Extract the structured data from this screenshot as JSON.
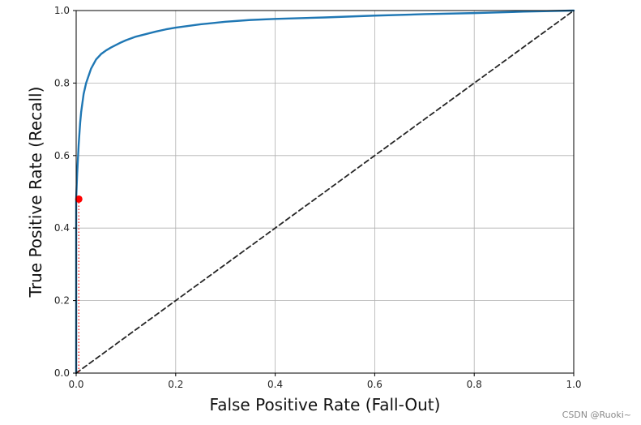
{
  "chart_data": {
    "type": "line",
    "xlabel": "False Positive Rate (Fall-Out)",
    "ylabel": "True Positive Rate (Recall)",
    "xlim": [
      0,
      1
    ],
    "ylim": [
      0,
      1
    ],
    "xticks": [
      "0.0",
      "0.2",
      "0.4",
      "0.6",
      "0.8",
      "1.0"
    ],
    "yticks": [
      "0.0",
      "0.2",
      "0.4",
      "0.6",
      "0.8",
      "1.0"
    ],
    "grid": true,
    "series": [
      {
        "kind": "roc-curve",
        "color": "#1f77b4",
        "style": "solid",
        "x": [
          0,
          0.0,
          0.002,
          0.005,
          0.008,
          0.01,
          0.015,
          0.02,
          0.03,
          0.04,
          0.05,
          0.06,
          0.07,
          0.08,
          0.09,
          0.1,
          0.12,
          0.14,
          0.16,
          0.18,
          0.2,
          0.25,
          0.3,
          0.35,
          0.4,
          0.5,
          0.6,
          0.7,
          0.8,
          0.9,
          1.0
        ],
        "y": [
          0,
          0.48,
          0.55,
          0.63,
          0.69,
          0.72,
          0.77,
          0.8,
          0.84,
          0.865,
          0.88,
          0.89,
          0.898,
          0.905,
          0.912,
          0.918,
          0.928,
          0.935,
          0.942,
          0.948,
          0.953,
          0.962,
          0.969,
          0.974,
          0.977,
          0.981,
          0.986,
          0.99,
          0.993,
          0.997,
          1.0
        ]
      },
      {
        "kind": "random-classifier",
        "color": "#262626",
        "style": "dashed",
        "x": [
          0,
          1
        ],
        "y": [
          0,
          1
        ]
      }
    ],
    "marker": {
      "x": 0.0053,
      "y": 0.48,
      "color": "#ff0000"
    },
    "marker_guides": {
      "color": "#ff0000",
      "style": "dotted"
    }
  },
  "watermark": "CSDN @Ruoki~"
}
